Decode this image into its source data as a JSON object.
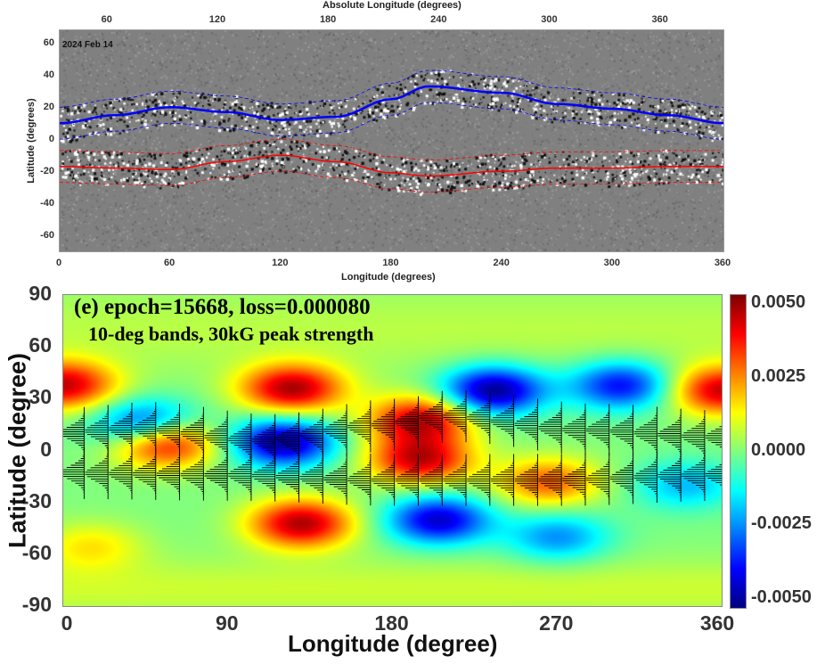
{
  "chart_data": [
    {
      "type": "heatmap",
      "subtype": "synoptic magnetogram with overlaid band curves",
      "date_label": "2024 Feb 14",
      "top_xlabel": "Absolute Longitude (degrees)",
      "top_xticks": [
        60,
        120,
        180,
        240,
        300,
        360
      ],
      "xlabel": "Longitude (degrees)",
      "ylabel": "Latitude (degrees)",
      "xticks": [
        0,
        60,
        120,
        180,
        240,
        300,
        360
      ],
      "yticks": [
        60,
        40,
        20,
        0,
        -20,
        -40,
        -60
      ],
      "xlim": [
        0,
        360
      ],
      "ylim": [
        -69,
        69
      ],
      "colormap": "grayscale",
      "series": [
        {
          "color": "#0000ff",
          "style": "solid",
          "x": [
            0,
            30,
            60,
            90,
            120,
            150,
            180,
            200,
            240,
            270,
            300,
            330,
            360
          ],
          "y": [
            11,
            16,
            21,
            18,
            13,
            15,
            26,
            34,
            30,
            23,
            20,
            16,
            11
          ]
        },
        {
          "color": "#0000ff",
          "style": "dashed",
          "offset": 10
        },
        {
          "color": "#0000ff",
          "style": "dashed",
          "offset": -10
        },
        {
          "color": "#ff0000",
          "style": "solid",
          "x": [
            0,
            30,
            60,
            90,
            120,
            150,
            180,
            200,
            240,
            270,
            300,
            330,
            360
          ],
          "y": [
            -16,
            -17,
            -18,
            -13,
            -9,
            -13,
            -20,
            -22,
            -19,
            -17,
            -17,
            -16,
            -16
          ]
        },
        {
          "color": "#ff0000",
          "style": "dashed",
          "offset": 10
        },
        {
          "color": "#ff0000",
          "style": "dashed",
          "offset": -10
        }
      ]
    },
    {
      "type": "heatmap",
      "annotation_line1": "(e) epoch=15668, loss=0.000080",
      "annotation_line2": "10-deg bands, 30kG peak strength",
      "xlabel": "Longitude (degree)",
      "ylabel": "Latitude (degree)",
      "xticks": [
        "0",
        "90",
        "180",
        "270",
        "360"
      ],
      "yticks": [
        "90",
        "60",
        "30",
        "0",
        "-30",
        "-60",
        "-90"
      ],
      "xlim": [
        0,
        360
      ],
      "ylim": [
        -90,
        90
      ],
      "colormap": "jet",
      "colorbar": {
        "range": [
          -0.0053,
          0.0053
        ],
        "ticks": [
          "0.0050",
          "0.0025",
          "0.0000",
          "-0.0025",
          "-0.0050"
        ]
      },
      "features": [
        {
          "lon": 0,
          "lat": 38,
          "value": 0.0045
        },
        {
          "lon": 360,
          "lat": 35,
          "value": 0.0045
        },
        {
          "lon": 125,
          "lat": 36,
          "value": 0.0048
        },
        {
          "lon": 55,
          "lat": 5,
          "value": 0.0048
        },
        {
          "lon": 195,
          "lat": 18,
          "value": 0.0045
        },
        {
          "lon": 195,
          "lat": -5,
          "value": 0.0045
        },
        {
          "lon": 130,
          "lat": -42,
          "value": 0.0048
        },
        {
          "lon": 265,
          "lat": -18,
          "value": 0.003
        },
        {
          "lon": 15,
          "lat": -55,
          "value": 0.0015
        },
        {
          "lon": 235,
          "lat": 35,
          "value": -0.0052
        },
        {
          "lon": 305,
          "lat": 38,
          "value": -0.004
        },
        {
          "lon": 45,
          "lat": 15,
          "value": -0.004
        },
        {
          "lon": 120,
          "lat": 5,
          "value": -0.005
        },
        {
          "lon": 205,
          "lat": -40,
          "value": -0.0045
        },
        {
          "lon": 270,
          "lat": -50,
          "value": -0.0025
        },
        {
          "lon": 340,
          "lat": -20,
          "value": -0.002
        }
      ],
      "bands": {
        "north": {
          "x": [
            0,
            45,
            110,
            180,
            210,
            290,
            360
          ],
          "y": [
            10,
            13,
            6,
            15,
            20,
            12,
            8
          ]
        },
        "south": {
          "x": [
            0,
            90,
            180,
            270,
            360
          ],
          "y": [
            -13,
            -14,
            -17,
            -17,
            -14
          ]
        },
        "width_deg": 10
      }
    }
  ]
}
